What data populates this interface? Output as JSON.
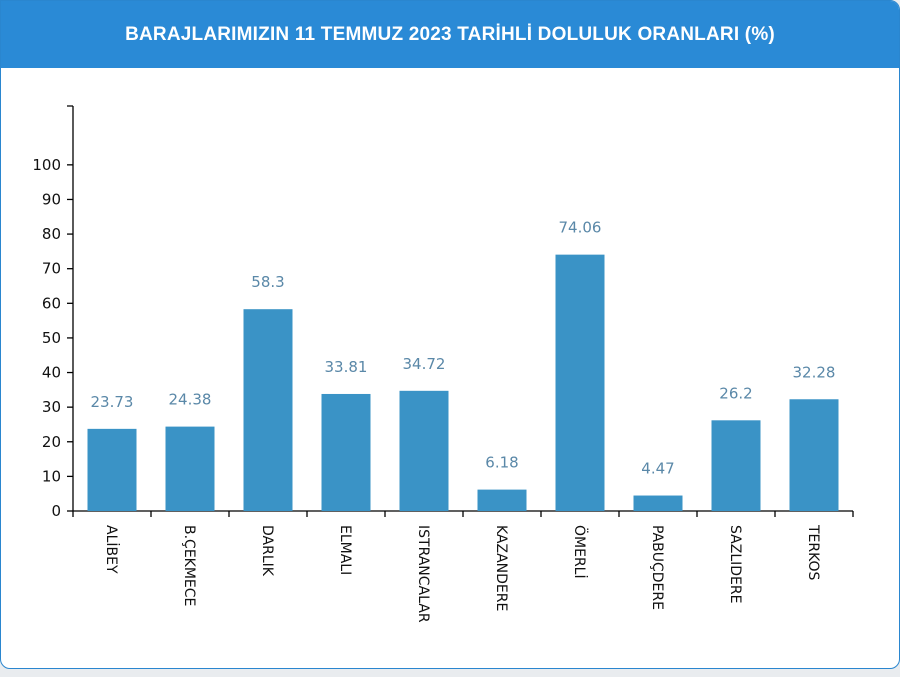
{
  "header": {
    "title": "BARAJLARIMIZIN 11 TEMMUZ 2023 TARİHLİ DOLULUK ORANLARI (%)"
  },
  "colors": {
    "header_bg": "#2a8ad6",
    "bar": "#3a93c6",
    "value_label": "#5a88a8",
    "axis": "#000000"
  },
  "chart_data": {
    "type": "bar",
    "title": "BARAJLARIMIZIN 11 TEMMUZ 2023 TARİHLİ DOLULUK ORANLARI (%)",
    "categories": [
      "ALİBEY",
      "B.ÇEKMECE",
      "DARLIK",
      "ELMALI",
      "ISTRANCALAR",
      "KAZANDERE",
      "ÖMERLİ",
      "PABUÇDERE",
      "SAZLIDERE",
      "TERKOS"
    ],
    "values": [
      23.73,
      24.38,
      58.3,
      33.81,
      34.72,
      6.18,
      74.06,
      4.47,
      26.2,
      32.28
    ],
    "value_labels": [
      "23.73",
      "24.38",
      "58.3",
      "33.81",
      "34.72",
      "6.18",
      "74.06",
      "4.47",
      "26.2",
      "32.28"
    ],
    "yticks": [
      0,
      10,
      20,
      30,
      40,
      50,
      60,
      70,
      80,
      90,
      100
    ],
    "ylim": [
      0,
      117
    ],
    "xlabel": "",
    "ylabel": "",
    "grid": false,
    "legend": "none"
  }
}
